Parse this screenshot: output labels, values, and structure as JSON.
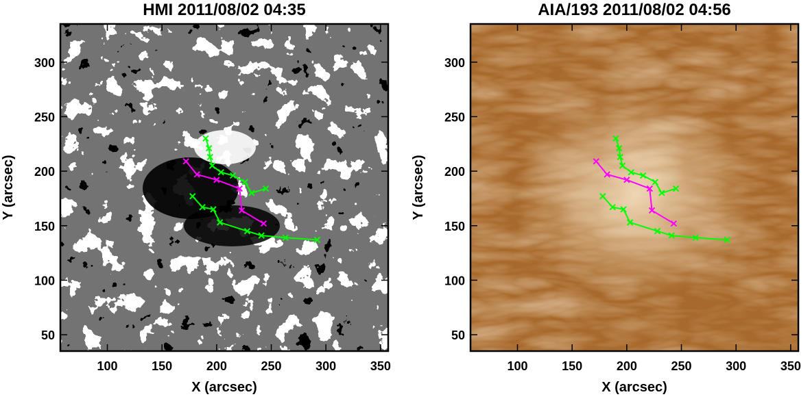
{
  "chart_data": [
    {
      "type": "line",
      "title": "HMI 2011/08/02 04:35",
      "xlabel": "X (arcsec)",
      "ylabel": "Y (arcsec)",
      "background": "magnetogram",
      "xlim": [
        57,
        357
      ],
      "ylim": [
        35,
        335
      ],
      "xticks": [
        100,
        150,
        200,
        250,
        300,
        350
      ],
      "yticks": [
        50,
        100,
        150,
        200,
        250,
        300
      ],
      "series": [
        {
          "color": "#ff00ff",
          "x": [
            172,
            182,
            200,
            221,
            223,
            243
          ],
          "values": [
            209,
            197,
            192,
            184,
            164,
            152
          ]
        },
        {
          "color": "#00ff00",
          "x": [
            190,
            193,
            194,
            196,
            204,
            215,
            226,
            232,
            245
          ],
          "values": [
            230,
            221,
            213,
            205,
            199,
            196,
            190,
            180,
            184
          ]
        },
        {
          "color": "#00ff00",
          "x": [
            178,
            187,
            197,
            203,
            228,
            241,
            263,
            292
          ],
          "values": [
            177,
            167,
            165,
            153,
            145,
            141,
            139,
            137
          ]
        }
      ]
    },
    {
      "type": "line",
      "title": "AIA/193 2011/08/02 04:56",
      "xlabel": "X (arcsec)",
      "ylabel": "Y (arcsec)",
      "background": "euv",
      "xlim": [
        57,
        357
      ],
      "ylim": [
        35,
        335
      ],
      "xticks": [
        100,
        150,
        200,
        250,
        300,
        350
      ],
      "yticks": [
        50,
        100,
        150,
        200,
        250,
        300
      ],
      "series": [
        {
          "color": "#ff00ff",
          "x": [
            172,
            182,
            200,
            221,
            223,
            243
          ],
          "values": [
            209,
            197,
            192,
            184,
            164,
            152
          ]
        },
        {
          "color": "#00ff00",
          "x": [
            190,
            193,
            194,
            196,
            204,
            215,
            226,
            232,
            245
          ],
          "values": [
            230,
            221,
            213,
            205,
            199,
            196,
            190,
            180,
            184
          ]
        },
        {
          "color": "#00ff00",
          "x": [
            178,
            187,
            197,
            203,
            228,
            241,
            263,
            292
          ],
          "values": [
            177,
            167,
            165,
            153,
            145,
            141,
            139,
            137
          ]
        }
      ]
    }
  ]
}
